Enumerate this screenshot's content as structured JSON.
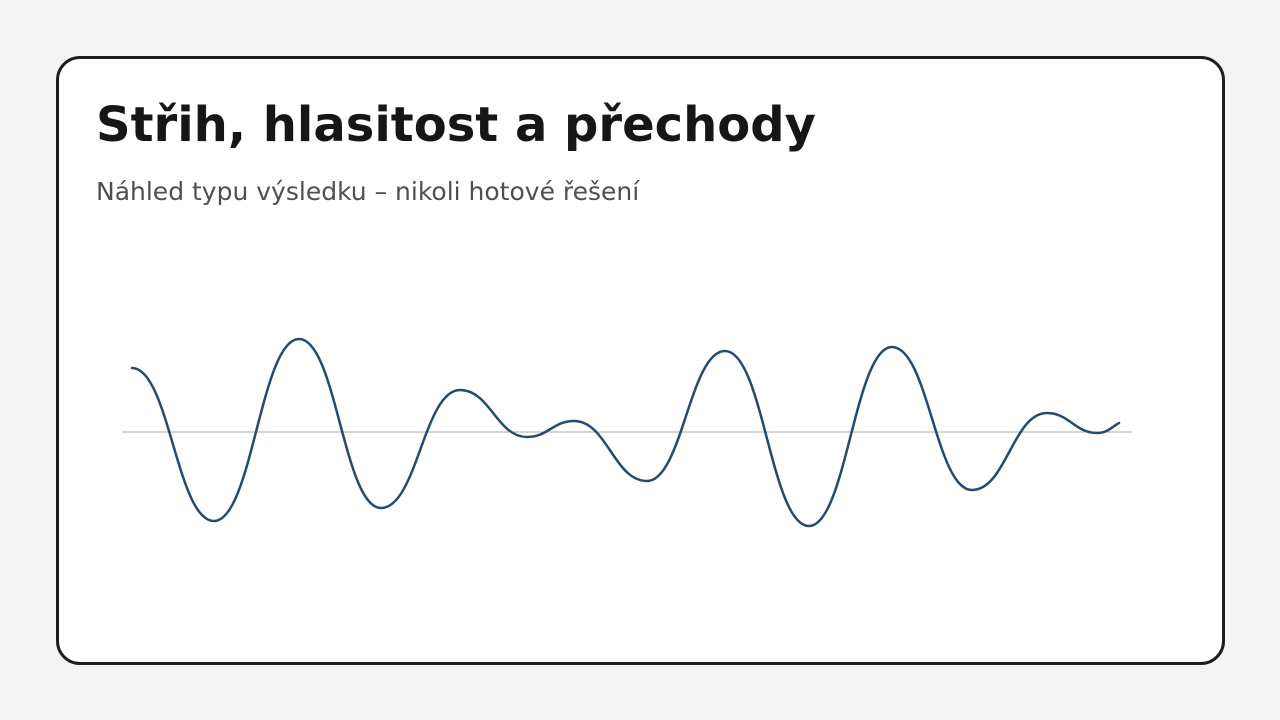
{
  "card": {
    "title": "Střih, hlasitost a přechody",
    "subtitle": "Náhled typu výsledku – nikoli hotové řešení"
  }
}
